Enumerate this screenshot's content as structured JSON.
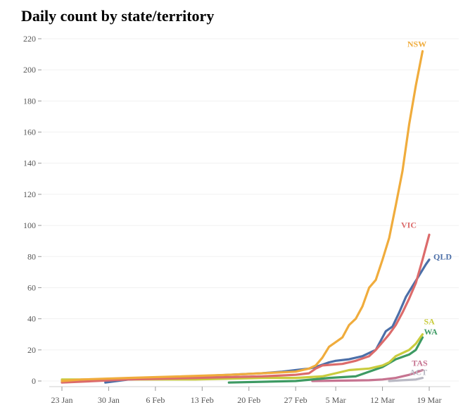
{
  "chart_data": {
    "type": "line",
    "title": "Daily count by state/territory",
    "xlabel": "",
    "ylabel": "",
    "ylim": [
      0,
      220
    ],
    "yticks": [
      0,
      20,
      40,
      60,
      80,
      100,
      120,
      140,
      160,
      180,
      200,
      220
    ],
    "x_domain": [
      -2,
      56
    ],
    "xticks": [
      {
        "label": "23 Jan",
        "day": 0
      },
      {
        "label": "30 Jan",
        "day": 7
      },
      {
        "label": "6 Feb",
        "day": 14
      },
      {
        "label": "13 Feb",
        "day": 21
      },
      {
        "label": "20 Feb",
        "day": 28
      },
      {
        "label": "27 Feb",
        "day": 35
      },
      {
        "label": "5 Mar",
        "day": 41
      },
      {
        "label": "12 Mar",
        "day": 48
      },
      {
        "label": "19 Mar",
        "day": 55
      }
    ],
    "grid": true,
    "series": [
      {
        "name": "ACT",
        "label": "ACT",
        "color": "#b9b9c4",
        "points": [
          [
            49,
            0
          ],
          [
            51,
            0.5
          ],
          [
            53,
            1
          ],
          [
            54,
            2
          ]
        ]
      },
      {
        "name": "TAS",
        "label": "TAS",
        "color": "#c67390",
        "points": [
          [
            37.5,
            0
          ],
          [
            46,
            0.5
          ],
          [
            48,
            1
          ],
          [
            50,
            2
          ],
          [
            52,
            4
          ],
          [
            54,
            7
          ]
        ]
      },
      {
        "name": "WA",
        "label": "WA",
        "color": "#3d9a63",
        "points": [
          [
            25,
            -1
          ],
          [
            35,
            0
          ],
          [
            40,
            2
          ],
          [
            44,
            3
          ],
          [
            46,
            6
          ],
          [
            48,
            9
          ],
          [
            50,
            14
          ],
          [
            52,
            17
          ],
          [
            53,
            20
          ],
          [
            54,
            28
          ]
        ]
      },
      {
        "name": "SA",
        "label": "SA",
        "color": "#c9cc3e",
        "points": [
          [
            0,
            1
          ],
          [
            10,
            1
          ],
          [
            20,
            1
          ],
          [
            30,
            2
          ],
          [
            35,
            2
          ],
          [
            39,
            3
          ],
          [
            41,
            5
          ],
          [
            43,
            7
          ],
          [
            46,
            8
          ],
          [
            48,
            10
          ],
          [
            49,
            12
          ],
          [
            50,
            16
          ],
          [
            52,
            20
          ],
          [
            53,
            24
          ],
          [
            54,
            30
          ]
        ]
      },
      {
        "name": "QLD",
        "label": "QLD",
        "color": "#4c6fa8",
        "points": [
          [
            6.5,
            -1
          ],
          [
            10,
            1
          ],
          [
            15,
            2
          ],
          [
            20,
            3
          ],
          [
            25,
            4
          ],
          [
            30,
            5
          ],
          [
            33,
            6
          ],
          [
            35,
            7
          ],
          [
            37,
            8
          ],
          [
            38,
            9
          ],
          [
            40,
            12
          ],
          [
            41,
            13
          ],
          [
            43,
            14
          ],
          [
            45,
            16
          ],
          [
            46,
            18
          ],
          [
            47,
            20
          ],
          [
            48,
            28
          ],
          [
            48.5,
            32
          ],
          [
            49.5,
            35
          ],
          [
            50.5,
            44
          ],
          [
            51.5,
            54
          ],
          [
            52.5,
            61
          ],
          [
            53.5,
            68
          ],
          [
            54.5,
            75
          ],
          [
            55,
            78
          ]
        ]
      },
      {
        "name": "VIC",
        "label": "VIC",
        "color": "#dc6b6b",
        "points": [
          [
            0,
            -1
          ],
          [
            10,
            1
          ],
          [
            20,
            2
          ],
          [
            30,
            3
          ],
          [
            35,
            4
          ],
          [
            37,
            5
          ],
          [
            38,
            8
          ],
          [
            39,
            10
          ],
          [
            42,
            11
          ],
          [
            44,
            13
          ],
          [
            46,
            16
          ],
          [
            47,
            20
          ],
          [
            48,
            25
          ],
          [
            49,
            30
          ],
          [
            50,
            36
          ],
          [
            51,
            44
          ],
          [
            52,
            53
          ],
          [
            53,
            63
          ],
          [
            54,
            78
          ],
          [
            55,
            94
          ]
        ]
      },
      {
        "name": "NSW",
        "label": "NSW",
        "color": "#f0ac3c",
        "points": [
          [
            0,
            0
          ],
          [
            3,
            1
          ],
          [
            10,
            2
          ],
          [
            18,
            3
          ],
          [
            25,
            4
          ],
          [
            30,
            5
          ],
          [
            35,
            6
          ],
          [
            37,
            8
          ],
          [
            38,
            10
          ],
          [
            39,
            15
          ],
          [
            40,
            22
          ],
          [
            41,
            25
          ],
          [
            42,
            28
          ],
          [
            43,
            36
          ],
          [
            44,
            40
          ],
          [
            45,
            48
          ],
          [
            46,
            60
          ],
          [
            47,
            65
          ],
          [
            48,
            78
          ],
          [
            49,
            92
          ],
          [
            50,
            113
          ],
          [
            51,
            135
          ],
          [
            52,
            165
          ],
          [
            53,
            190
          ],
          [
            54,
            212
          ]
        ]
      }
    ]
  }
}
